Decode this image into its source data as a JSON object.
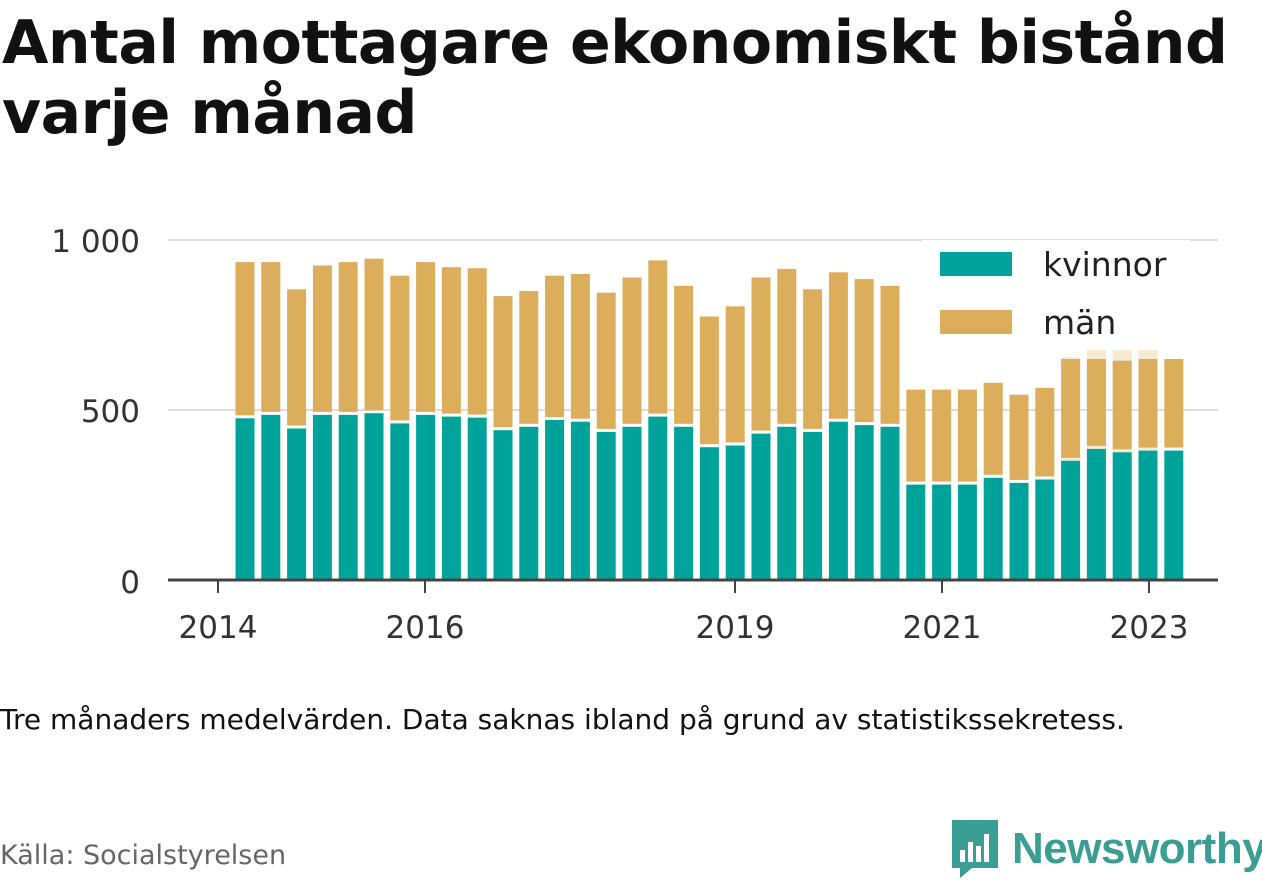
{
  "title": "Antal mottagare ekonomiskt bistånd varje månad",
  "note": "Tre månaders medelvärden. Data saknas ibland på grund av statistikssekretess.",
  "source": "Källa: Socialstyrelsen",
  "brand": {
    "name": "Newsworthy",
    "icon": "newsworthy-logo-icon",
    "color": "#3a9e94"
  },
  "colors": {
    "kvinnor": "#00a39a",
    "man": "#dcad5b",
    "man_provisional": "#f6ead2",
    "grid": "#dddddd",
    "axis": "#444444"
  },
  "chart_data": {
    "type": "bar",
    "stacked": true,
    "categories": [
      "2014-04",
      "2014-07",
      "2014-10",
      "2015-01",
      "2015-04",
      "2015-07",
      "2015-10",
      "2016-01",
      "2016-04",
      "2016-07",
      "2016-10",
      "2017-01",
      "2017-04",
      "2017-07",
      "2017-10",
      "2018-01",
      "2018-04",
      "2018-07",
      "2018-10",
      "2019-01",
      "2019-04",
      "2019-07",
      "2019-10",
      "2020-01",
      "2020-04",
      "2020-07",
      "2020-10",
      "2021-01",
      "2021-04",
      "2021-07",
      "2021-10",
      "2022-01",
      "2022-04",
      "2022-07",
      "2022-10",
      "2023-01",
      "2023-04"
    ],
    "series": [
      {
        "name": "kvinnor",
        "color": "#00a39a",
        "values": [
          480,
          490,
          450,
          490,
          490,
          495,
          465,
          490,
          485,
          482,
          445,
          455,
          475,
          470,
          440,
          455,
          485,
          455,
          395,
          400,
          435,
          455,
          440,
          470,
          460,
          455,
          285,
          285,
          285,
          305,
          290,
          300,
          355,
          390,
          380,
          385,
          385
        ]
      },
      {
        "name": "män",
        "color": "#dcad5b",
        "values": [
          455,
          445,
          405,
          435,
          445,
          450,
          430,
          445,
          435,
          435,
          390,
          395,
          420,
          430,
          405,
          435,
          455,
          410,
          380,
          405,
          455,
          460,
          415,
          435,
          425,
          410,
          275,
          275,
          275,
          275,
          255,
          265,
          295,
          260,
          265,
          265,
          265
        ]
      }
    ],
    "provisional_totals": [
      null,
      null,
      null,
      null,
      null,
      null,
      null,
      null,
      null,
      null,
      null,
      null,
      null,
      null,
      null,
      null,
      null,
      null,
      null,
      null,
      null,
      null,
      null,
      null,
      null,
      null,
      null,
      null,
      null,
      null,
      null,
      null,
      655,
      710,
      690,
      700,
      null
    ],
    "x_tick_labels": [
      "2014",
      "2016",
      "2019",
      "2021",
      "2023"
    ],
    "y_ticks": [
      "0",
      "500",
      "1 000"
    ],
    "ylim": [
      0,
      1000
    ],
    "grid": true,
    "legend": {
      "position": "top-right",
      "entries": [
        "kvinnor",
        "män"
      ]
    }
  }
}
